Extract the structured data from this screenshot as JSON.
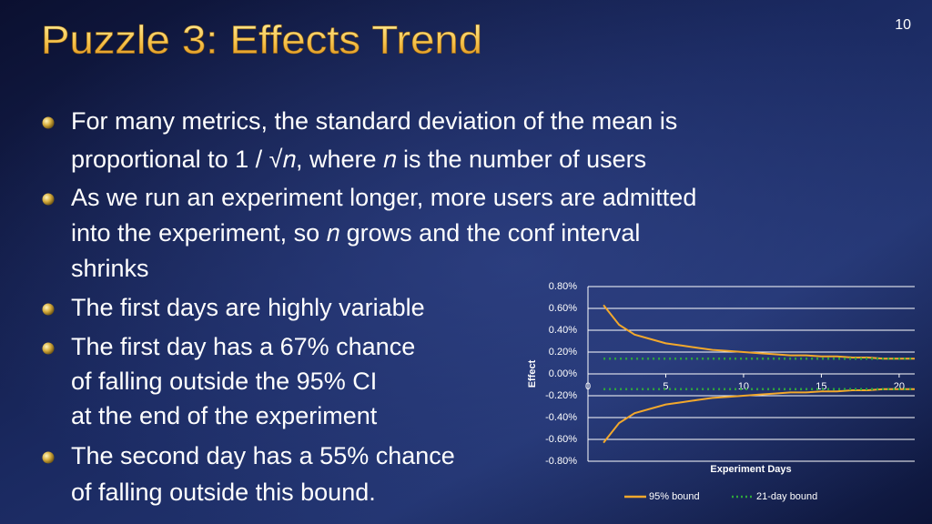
{
  "slide": {
    "title": "Puzzle 3: Effects Trend",
    "page_number": "10",
    "bullets": [
      {
        "lines": [
          "For many metrics, the standard deviation of the mean is",
          "proportional to 1 / √𝑛, where 𝑛 is the number of users"
        ]
      },
      {
        "lines": [
          "As we run an experiment longer, more users are admitted",
          "into the experiment, so 𝑛 grows and the conf interval",
          "shrinks"
        ]
      },
      {
        "lines": [
          "The first days are highly variable"
        ]
      },
      {
        "lines": [
          "The first day has a 67% chance",
          "of falling outside the 95% CI",
          "at the end of the experiment"
        ]
      },
      {
        "lines": [
          "The second day has a 55% chance",
          "of falling outside this bound."
        ]
      }
    ]
  },
  "chart_data": {
    "type": "line",
    "x_label": "Experiment Days",
    "y_label": "Effect",
    "x": [
      1,
      2,
      3,
      4,
      5,
      6,
      7,
      8,
      9,
      10,
      11,
      12,
      13,
      14,
      15,
      16,
      17,
      18,
      19,
      20,
      21
    ],
    "xlim": [
      0,
      21
    ],
    "xticks": [
      0,
      5,
      10,
      15,
      20
    ],
    "ylim": [
      -0.8,
      0.8
    ],
    "yticks": [
      {
        "value": 0.8,
        "label": "0.80%"
      },
      {
        "value": 0.6,
        "label": "0.60%"
      },
      {
        "value": 0.4,
        "label": "0.40%"
      },
      {
        "value": 0.2,
        "label": "0.20%"
      },
      {
        "value": 0,
        "label": "0.00%"
      },
      {
        "value": -0.2,
        "label": "-0.20%"
      },
      {
        "value": -0.4,
        "label": "-0.40%"
      },
      {
        "value": -0.6,
        "label": "-0.60%"
      },
      {
        "value": -0.8,
        "label": "-0.80%"
      }
    ],
    "grid": true,
    "series": [
      {
        "name": "95% bound",
        "color": "#f2a82c",
        "dash": false,
        "values": [
          0.63,
          0.45,
          0.36,
          0.32,
          0.28,
          0.26,
          0.24,
          0.22,
          0.21,
          0.2,
          0.19,
          0.18,
          0.17,
          0.17,
          0.16,
          0.16,
          0.15,
          0.15,
          0.14,
          0.14,
          0.14
        ],
        "lower": [
          -0.63,
          -0.45,
          -0.36,
          -0.32,
          -0.28,
          -0.26,
          -0.24,
          -0.22,
          -0.21,
          -0.2,
          -0.19,
          -0.18,
          -0.17,
          -0.17,
          -0.16,
          -0.16,
          -0.15,
          -0.15,
          -0.14,
          -0.14,
          -0.14
        ]
      },
      {
        "name": "21-day bound",
        "color": "#2ea83c",
        "dash": true,
        "values": [
          0.14,
          0.14,
          0.14,
          0.14,
          0.14,
          0.14,
          0.14,
          0.14,
          0.14,
          0.14,
          0.14,
          0.14,
          0.14,
          0.14,
          0.14,
          0.14,
          0.14,
          0.14,
          0.14,
          0.14,
          0.14
        ],
        "lower": [
          -0.14,
          -0.14,
          -0.14,
          -0.14,
          -0.14,
          -0.14,
          -0.14,
          -0.14,
          -0.14,
          -0.14,
          -0.14,
          -0.14,
          -0.14,
          -0.14,
          -0.14,
          -0.14,
          -0.14,
          -0.14,
          -0.14,
          -0.14,
          -0.14
        ]
      }
    ]
  }
}
